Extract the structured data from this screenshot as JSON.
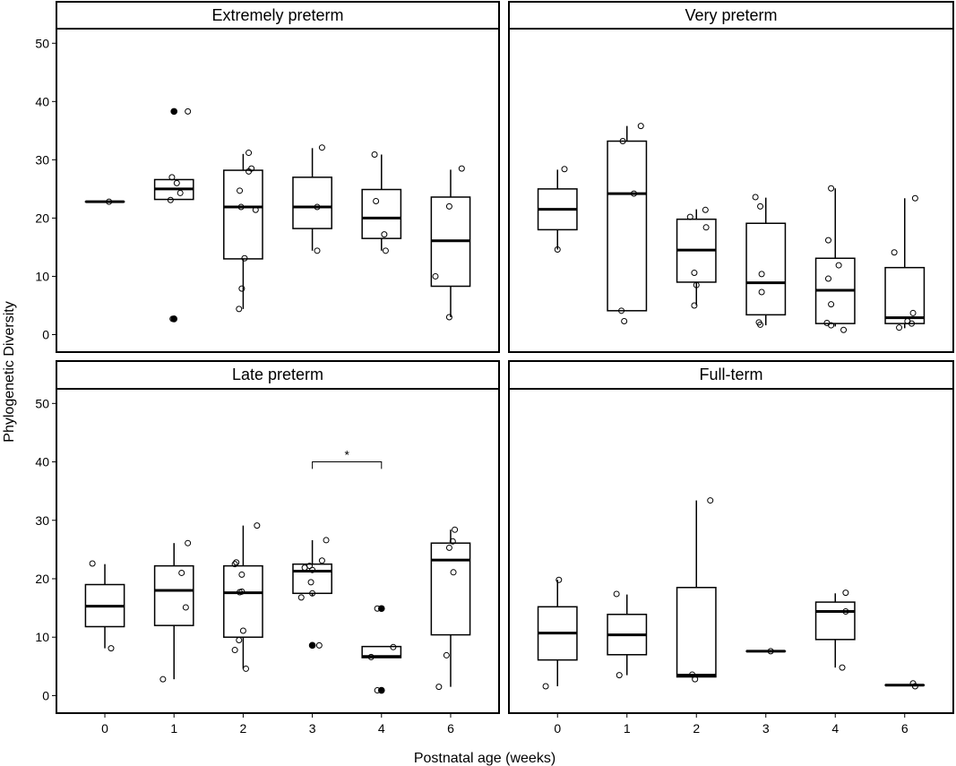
{
  "chart_data": {
    "type": "boxplot",
    "xlabel": "Postnatal age (weeks)",
    "ylabel": "Phylogenetic Diversity",
    "ylim": [
      -3,
      52.5
    ],
    "yticks": [
      0,
      10,
      20,
      30,
      40,
      50
    ],
    "categories": [
      "0",
      "1",
      "2",
      "3",
      "4",
      "6"
    ],
    "panels": [
      {
        "title": "Extremely preterm",
        "boxes": [
          {
            "x": "0",
            "q1": 22.8,
            "median": 22.8,
            "q3": 22.8,
            "whisker_low": 22.8,
            "whisker_high": 22.8
          },
          {
            "x": "1",
            "q1": 23.2,
            "median": 25.0,
            "q3": 26.6,
            "whisker_low": 23.2,
            "whisker_high": 26.6
          },
          {
            "x": "2",
            "q1": 13.0,
            "median": 21.9,
            "q3": 28.2,
            "whisker_low": 4.4,
            "whisker_high": 31.0
          },
          {
            "x": "3",
            "q1": 18.2,
            "median": 21.9,
            "q3": 27.0,
            "whisker_low": 14.4,
            "whisker_high": 32.0
          },
          {
            "x": "4",
            "q1": 16.5,
            "median": 20.0,
            "q3": 24.9,
            "whisker_low": 14.4,
            "whisker_high": 30.9
          },
          {
            "x": "6",
            "q1": 8.3,
            "median": 16.1,
            "q3": 23.6,
            "whisker_low": 3.0,
            "whisker_high": 28.3
          }
        ],
        "points": [
          {
            "x": "0",
            "y": 22.8,
            "dx": 0.06
          },
          {
            "x": "1",
            "y": 38.3,
            "dx": 0.2
          },
          {
            "x": "1",
            "y": 27.0,
            "dx": -0.03
          },
          {
            "x": "1",
            "y": 26.0,
            "dx": 0.04
          },
          {
            "x": "1",
            "y": 24.3,
            "dx": 0.09
          },
          {
            "x": "1",
            "y": 23.1,
            "dx": -0.05
          },
          {
            "x": "1",
            "y": 2.7,
            "dx": -0.02
          },
          {
            "x": "2",
            "y": 31.2,
            "dx": 0.08
          },
          {
            "x": "2",
            "y": 28.5,
            "dx": 0.12
          },
          {
            "x": "2",
            "y": 28.0,
            "dx": 0.08
          },
          {
            "x": "2",
            "y": 24.7,
            "dx": -0.05
          },
          {
            "x": "2",
            "y": 21.9,
            "dx": -0.03
          },
          {
            "x": "2",
            "y": 21.4,
            "dx": 0.18
          },
          {
            "x": "2",
            "y": 13.1,
            "dx": 0.02
          },
          {
            "x": "2",
            "y": 7.9,
            "dx": -0.02
          },
          {
            "x": "2",
            "y": 4.4,
            "dx": -0.06
          },
          {
            "x": "3",
            "y": 32.1,
            "dx": 0.14
          },
          {
            "x": "3",
            "y": 21.9,
            "dx": 0.07
          },
          {
            "x": "3",
            "y": 14.4,
            "dx": 0.07
          },
          {
            "x": "4",
            "y": 30.9,
            "dx": -0.1
          },
          {
            "x": "4",
            "y": 22.9,
            "dx": -0.08
          },
          {
            "x": "4",
            "y": 17.2,
            "dx": 0.04
          },
          {
            "x": "4",
            "y": 14.4,
            "dx": 0.06
          },
          {
            "x": "6",
            "y": 28.5,
            "dx": 0.16
          },
          {
            "x": "6",
            "y": 22.0,
            "dx": -0.02
          },
          {
            "x": "6",
            "y": 10.0,
            "dx": -0.22
          },
          {
            "x": "6",
            "y": 3.0,
            "dx": -0.02
          }
        ],
        "outliers": [
          {
            "x": "1",
            "y": 38.3
          },
          {
            "x": "1",
            "y": 2.7
          }
        ]
      },
      {
        "title": "Very preterm",
        "boxes": [
          {
            "x": "0",
            "q1": 18.0,
            "median": 21.5,
            "q3": 25.0,
            "whisker_low": 14.6,
            "whisker_high": 28.3
          },
          {
            "x": "1",
            "q1": 4.1,
            "median": 24.2,
            "q3": 33.2,
            "whisker_low": 4.1,
            "whisker_high": 35.8
          },
          {
            "x": "2",
            "q1": 9.0,
            "median": 14.5,
            "q3": 19.8,
            "whisker_low": 5.0,
            "whisker_high": 21.5
          },
          {
            "x": "3",
            "q1": 3.4,
            "median": 8.9,
            "q3": 19.1,
            "whisker_low": 1.6,
            "whisker_high": 23.5
          },
          {
            "x": "4",
            "q1": 1.9,
            "median": 7.6,
            "q3": 13.1,
            "whisker_low": 1.4,
            "whisker_high": 25.1
          },
          {
            "x": "6",
            "q1": 1.9,
            "median": 2.9,
            "q3": 11.5,
            "whisker_low": 1.1,
            "whisker_high": 23.4
          }
        ],
        "points": [
          {
            "x": "0",
            "y": 28.4,
            "dx": 0.1
          },
          {
            "x": "0",
            "y": 14.6,
            "dx": 0.0
          },
          {
            "x": "1",
            "y": 35.8,
            "dx": 0.2
          },
          {
            "x": "1",
            "y": 33.2,
            "dx": -0.06
          },
          {
            "x": "1",
            "y": 24.2,
            "dx": 0.1
          },
          {
            "x": "1",
            "y": 4.1,
            "dx": -0.08
          },
          {
            "x": "1",
            "y": 2.3,
            "dx": -0.04
          },
          {
            "x": "2",
            "y": 21.4,
            "dx": 0.13
          },
          {
            "x": "2",
            "y": 20.2,
            "dx": -0.09
          },
          {
            "x": "2",
            "y": 18.4,
            "dx": 0.14
          },
          {
            "x": "2",
            "y": 10.6,
            "dx": -0.03
          },
          {
            "x": "2",
            "y": 8.5,
            "dx": 0.0
          },
          {
            "x": "2",
            "y": 5.0,
            "dx": -0.03
          },
          {
            "x": "3",
            "y": 23.6,
            "dx": -0.15
          },
          {
            "x": "3",
            "y": 22.0,
            "dx": -0.08
          },
          {
            "x": "3",
            "y": 10.4,
            "dx": -0.06
          },
          {
            "x": "3",
            "y": 7.3,
            "dx": -0.06
          },
          {
            "x": "3",
            "y": 2.1,
            "dx": -0.1
          },
          {
            "x": "3",
            "y": 1.7,
            "dx": -0.08
          },
          {
            "x": "4",
            "y": 25.1,
            "dx": -0.06
          },
          {
            "x": "4",
            "y": 16.2,
            "dx": -0.1
          },
          {
            "x": "4",
            "y": 11.9,
            "dx": 0.05
          },
          {
            "x": "4",
            "y": 9.6,
            "dx": -0.1
          },
          {
            "x": "4",
            "y": 5.2,
            "dx": -0.06
          },
          {
            "x": "4",
            "y": 2.0,
            "dx": -0.12
          },
          {
            "x": "4",
            "y": 1.6,
            "dx": -0.06
          },
          {
            "x": "4",
            "y": 0.8,
            "dx": 0.12
          },
          {
            "x": "6",
            "y": 23.4,
            "dx": 0.15
          },
          {
            "x": "6",
            "y": 14.1,
            "dx": -0.15
          },
          {
            "x": "6",
            "y": 3.7,
            "dx": 0.12
          },
          {
            "x": "6",
            "y": 2.3,
            "dx": 0.04
          },
          {
            "x": "6",
            "y": 1.9,
            "dx": 0.1
          },
          {
            "x": "6",
            "y": 1.2,
            "dx": -0.08
          }
        ],
        "outliers": []
      },
      {
        "title": "Late preterm",
        "boxes": [
          {
            "x": "0",
            "q1": 11.8,
            "median": 15.3,
            "q3": 19.0,
            "whisker_low": 8.1,
            "whisker_high": 22.5
          },
          {
            "x": "1",
            "q1": 12.0,
            "median": 18.0,
            "q3": 22.2,
            "whisker_low": 2.8,
            "whisker_high": 26.1
          },
          {
            "x": "2",
            "q1": 10.0,
            "median": 17.6,
            "q3": 22.2,
            "whisker_low": 4.6,
            "whisker_high": 29.1
          },
          {
            "x": "3",
            "q1": 17.5,
            "median": 21.3,
            "q3": 22.5,
            "whisker_low": 17.0,
            "whisker_high": 26.6
          },
          {
            "x": "4",
            "q1": 6.5,
            "median": 6.7,
            "q3": 8.4,
            "whisker_low": 6.5,
            "whisker_high": 8.4
          },
          {
            "x": "6",
            "q1": 10.4,
            "median": 23.2,
            "q3": 26.1,
            "whisker_low": 1.5,
            "whisker_high": 28.4
          }
        ],
        "points": [
          {
            "x": "0",
            "y": 22.6,
            "dx": -0.18
          },
          {
            "x": "0",
            "y": 8.1,
            "dx": 0.09
          },
          {
            "x": "1",
            "y": 26.1,
            "dx": 0.2
          },
          {
            "x": "1",
            "y": 21.0,
            "dx": 0.11
          },
          {
            "x": "1",
            "y": 15.1,
            "dx": 0.17
          },
          {
            "x": "1",
            "y": 2.8,
            "dx": -0.16
          },
          {
            "x": "2",
            "y": 29.1,
            "dx": 0.2
          },
          {
            "x": "2",
            "y": 22.8,
            "dx": -0.1
          },
          {
            "x": "2",
            "y": 22.5,
            "dx": -0.12
          },
          {
            "x": "2",
            "y": 20.7,
            "dx": -0.02
          },
          {
            "x": "2",
            "y": 17.8,
            "dx": -0.02
          },
          {
            "x": "2",
            "y": 17.7,
            "dx": -0.05
          },
          {
            "x": "2",
            "y": 11.1,
            "dx": 0.0
          },
          {
            "x": "2",
            "y": 9.5,
            "dx": -0.06
          },
          {
            "x": "2",
            "y": 7.8,
            "dx": -0.12
          },
          {
            "x": "2",
            "y": 4.6,
            "dx": 0.04
          },
          {
            "x": "3",
            "y": 26.6,
            "dx": 0.2
          },
          {
            "x": "3",
            "y": 23.1,
            "dx": 0.14
          },
          {
            "x": "3",
            "y": 22.2,
            "dx": -0.04
          },
          {
            "x": "3",
            "y": 21.9,
            "dx": -0.11
          },
          {
            "x": "3",
            "y": 21.5,
            "dx": 0.0
          },
          {
            "x": "3",
            "y": 19.4,
            "dx": -0.02
          },
          {
            "x": "3",
            "y": 17.5,
            "dx": 0.0
          },
          {
            "x": "3",
            "y": 16.8,
            "dx": -0.16
          },
          {
            "x": "3",
            "y": 8.6,
            "dx": 0.1
          },
          {
            "x": "4",
            "y": 14.9,
            "dx": -0.06
          },
          {
            "x": "4",
            "y": 8.3,
            "dx": 0.17
          },
          {
            "x": "4",
            "y": 6.6,
            "dx": -0.15
          },
          {
            "x": "4",
            "y": 0.9,
            "dx": -0.06
          },
          {
            "x": "6",
            "y": 28.4,
            "dx": 0.06
          },
          {
            "x": "6",
            "y": 26.4,
            "dx": 0.03
          },
          {
            "x": "6",
            "y": 25.3,
            "dx": -0.02
          },
          {
            "x": "6",
            "y": 21.1,
            "dx": 0.04
          },
          {
            "x": "6",
            "y": 6.9,
            "dx": -0.06
          },
          {
            "x": "6",
            "y": 1.5,
            "dx": -0.17
          }
        ],
        "outliers": [
          {
            "x": "3",
            "y": 8.6
          },
          {
            "x": "4",
            "y": 14.9
          },
          {
            "x": "4",
            "y": 0.9
          }
        ],
        "annotation": {
          "text": "*",
          "from": "3",
          "to": "4",
          "y": 40,
          "drop": 1.2
        }
      },
      {
        "title": "Full-term",
        "boxes": [
          {
            "x": "0",
            "q1": 6.1,
            "median": 10.7,
            "q3": 15.2,
            "whisker_low": 1.6,
            "whisker_high": 19.8
          },
          {
            "x": "1",
            "q1": 7.0,
            "median": 10.4,
            "q3": 13.9,
            "whisker_low": 3.5,
            "whisker_high": 17.3
          },
          {
            "x": "2",
            "q1": 3.2,
            "median": 3.5,
            "q3": 18.5,
            "whisker_low": 3.2,
            "whisker_high": 33.4
          },
          {
            "x": "3",
            "q1": 7.6,
            "median": 7.6,
            "q3": 7.6,
            "whisker_low": 7.6,
            "whisker_high": 7.6
          },
          {
            "x": "4",
            "q1": 9.6,
            "median": 14.4,
            "q3": 16.0,
            "whisker_low": 4.8,
            "whisker_high": 17.5
          },
          {
            "x": "6",
            "q1": 1.8,
            "median": 1.8,
            "q3": 1.8,
            "whisker_low": 1.8,
            "whisker_high": 1.8
          }
        ],
        "points": [
          {
            "x": "0",
            "y": 19.8,
            "dx": 0.02
          },
          {
            "x": "0",
            "y": 1.6,
            "dx": -0.17
          },
          {
            "x": "1",
            "y": 17.4,
            "dx": -0.15
          },
          {
            "x": "1",
            "y": 3.5,
            "dx": -0.11
          },
          {
            "x": "2",
            "y": 33.4,
            "dx": 0.2
          },
          {
            "x": "2",
            "y": 3.6,
            "dx": -0.06
          },
          {
            "x": "2",
            "y": 2.8,
            "dx": -0.02
          },
          {
            "x": "3",
            "y": 7.6,
            "dx": 0.07
          },
          {
            "x": "4",
            "y": 17.6,
            "dx": 0.15
          },
          {
            "x": "4",
            "y": 14.4,
            "dx": 0.15
          },
          {
            "x": "4",
            "y": 4.8,
            "dx": 0.1
          },
          {
            "x": "6",
            "y": 2.1,
            "dx": 0.12
          },
          {
            "x": "6",
            "y": 1.6,
            "dx": 0.15
          }
        ],
        "outliers": []
      }
    ]
  }
}
